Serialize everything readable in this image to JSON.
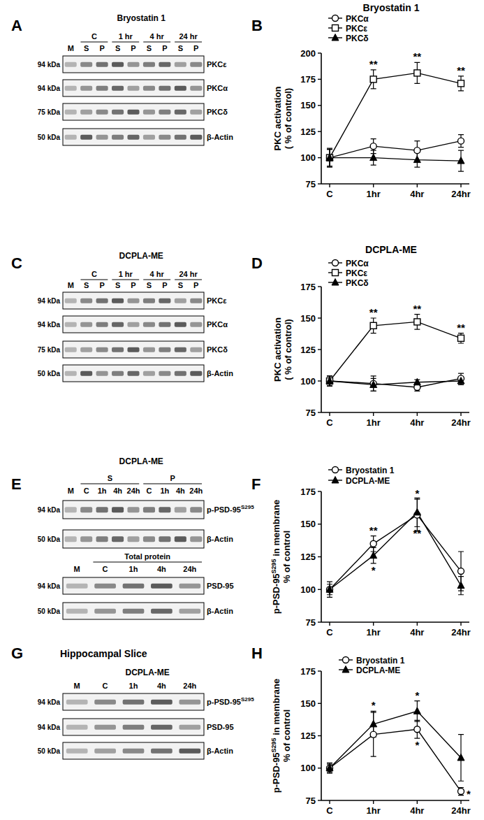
{
  "blots": [
    {
      "letter": "A",
      "title": "Bryostatin 1",
      "marker": "M",
      "groups": [
        {
          "label": "C",
          "lanes": [
            "S",
            "P"
          ]
        },
        {
          "label": "1 hr",
          "lanes": [
            "S",
            "P"
          ]
        },
        {
          "label": "4 hr",
          "lanes": [
            "S",
            "P"
          ]
        },
        {
          "label": "24 hr",
          "lanes": [
            "S",
            "P"
          ]
        }
      ],
      "rows": [
        {
          "kda": "94 kDa",
          "label": "PKCε"
        },
        {
          "kda": "94 kDa",
          "label": "PKCα"
        },
        {
          "kda": "75 kDa",
          "label": "PKCδ"
        },
        {
          "kda": "50 kDa",
          "label": "β-Actin"
        }
      ]
    },
    {
      "letter": "C",
      "title": "DCPLA-ME",
      "marker": "M",
      "groups": [
        {
          "label": "C",
          "lanes": [
            "S",
            "P"
          ]
        },
        {
          "label": "1 hr",
          "lanes": [
            "S",
            "P"
          ]
        },
        {
          "label": "4 hr",
          "lanes": [
            "S",
            "P"
          ]
        },
        {
          "label": "24 hr",
          "lanes": [
            "S",
            "P"
          ]
        }
      ],
      "rows": [
        {
          "kda": "94 kDa",
          "label": "PKCε"
        },
        {
          "kda": "94 kDa",
          "label": "PKCα"
        },
        {
          "kda": "75 kDa",
          "label": "PKCδ"
        },
        {
          "kda": "50 kDa",
          "label": "β-Actin"
        }
      ]
    },
    {
      "letter": "E",
      "title": "DCPLA-ME",
      "marker": "M",
      "groups": [
        {
          "label": "S",
          "lanes": [
            "C",
            "1h",
            "4h",
            "24h"
          ]
        },
        {
          "label": "P",
          "lanes": [
            "C",
            "1h",
            "4h",
            "24h"
          ]
        }
      ],
      "rows": [
        {
          "kda": "94 kDa",
          "label": "p-PSD-95",
          "sup": "S295"
        },
        {
          "kda": "50 kDa",
          "label": "β-Actin"
        }
      ]
    },
    {
      "marker": "M",
      "groups": [
        {
          "label": "Total protein",
          "lanes": [
            "C",
            "1h",
            "4h",
            "24h"
          ]
        }
      ],
      "rows": [
        {
          "kda": "94 kDa",
          "label": "PSD-95"
        },
        {
          "kda": "50 kDa",
          "label": "β-Actin"
        }
      ]
    },
    {
      "letter": "G",
      "heading": "Hippocampal Slice",
      "title": "DCPLA-ME",
      "marker": "M",
      "groups": [
        {
          "lanes": [
            "C",
            "1h",
            "4h",
            "24h"
          ]
        }
      ],
      "rows": [
        {
          "kda": "94 kDa",
          "label": "p-PSD-95",
          "sup": "S295"
        },
        {
          "kda": "94 kDa",
          "label": "PSD-95"
        },
        {
          "kda": "50 kDa",
          "label": "β-Actin"
        }
      ]
    }
  ],
  "chart_data": [
    {
      "type": "line",
      "letter": "B",
      "title": "Bryostatin 1",
      "y_label": [
        [
          {
            "text": "PKC activation"
          }
        ],
        [
          {
            "text": "( % of control)"
          }
        ]
      ],
      "categories": [
        "C",
        "1hr",
        "4hr",
        "24hr"
      ],
      "ylim": [
        75,
        200
      ],
      "yticks": [
        75,
        100,
        125,
        150,
        175,
        200
      ],
      "legend": "top-left",
      "series": [
        {
          "name": "PKCα",
          "color": "#000000",
          "marker": "circle-open",
          "values": [
            100,
            111,
            107,
            116
          ],
          "errors": [
            9,
            7,
            9,
            6
          ]
        },
        {
          "name": "PKCε",
          "color": "#000000",
          "marker": "square-open",
          "values": [
            100,
            175,
            181,
            171
          ],
          "errors": [
            8,
            9,
            10,
            7
          ]
        },
        {
          "name": "PKCδ",
          "color": "#000000",
          "marker": "triangle",
          "values": [
            100,
            100,
            98,
            97
          ],
          "errors": [
            8,
            7,
            7,
            10
          ]
        }
      ],
      "annotations": [
        {
          "text": "**",
          "series": 1,
          "category": 1,
          "side": "above"
        },
        {
          "text": "**",
          "series": 1,
          "category": 2,
          "side": "above"
        },
        {
          "text": "**",
          "series": 1,
          "category": 3,
          "side": "above"
        }
      ]
    },
    {
      "type": "line",
      "letter": "D",
      "title": "DCPLA-ME",
      "y_label": [
        [
          {
            "text": "PKC activation"
          }
        ],
        [
          {
            "text": "( % of control)"
          }
        ]
      ],
      "categories": [
        "C",
        "1hr",
        "4hr",
        "24hr"
      ],
      "ylim": [
        75,
        175
      ],
      "yticks": [
        75,
        100,
        125,
        150,
        175
      ],
      "legend": "top-left",
      "series": [
        {
          "name": "PKCα",
          "color": "#000000",
          "marker": "circle-open",
          "values": [
            100,
            98,
            95,
            102
          ],
          "errors": [
            4,
            6,
            3,
            4
          ]
        },
        {
          "name": "PKCε",
          "color": "#000000",
          "marker": "square-open",
          "values": [
            100,
            144,
            147,
            134
          ],
          "errors": [
            4,
            6,
            6,
            4
          ]
        },
        {
          "name": "PKCδ",
          "color": "#000000",
          "marker": "triangle",
          "values": [
            100,
            97,
            99,
            100
          ],
          "errors": [
            4,
            5,
            2,
            3
          ]
        }
      ],
      "annotations": [
        {
          "text": "**",
          "series": 1,
          "category": 1,
          "side": "above"
        },
        {
          "text": "**",
          "series": 1,
          "category": 2,
          "side": "above"
        },
        {
          "text": "**",
          "series": 1,
          "category": 3,
          "side": "above"
        }
      ]
    },
    {
      "type": "line",
      "letter": "F",
      "y_label": [
        [
          {
            "text": "p-PSD-95"
          },
          {
            "sup": "S295"
          },
          {
            "text": " in membrane"
          }
        ],
        [
          {
            "text": "% of control"
          }
        ]
      ],
      "categories": [
        "C",
        "1hr",
        "4hr",
        "24hr"
      ],
      "ylim": [
        75,
        175
      ],
      "yticks": [
        75,
        100,
        125,
        150,
        175
      ],
      "legend": "top-left",
      "series": [
        {
          "name": "Bryostatin 1",
          "color": "#000000",
          "marker": "circle-open",
          "values": [
            100,
            135,
            157,
            114
          ],
          "errors": [
            6,
            6,
            12,
            15
          ]
        },
        {
          "name": "DCPLA-ME",
          "color": "#000000",
          "marker": "triangle",
          "values": [
            100,
            126,
            159,
            103
          ],
          "errors": [
            4,
            6,
            11,
            7
          ]
        }
      ],
      "annotations": [
        {
          "text": "**",
          "series": 0,
          "category": 1,
          "side": "above"
        },
        {
          "text": "*",
          "series": 1,
          "category": 1,
          "side": "below"
        },
        {
          "text": "*",
          "series": 0,
          "category": 2,
          "side": "above"
        },
        {
          "text": "**",
          "series": 1,
          "category": 2,
          "side": "below"
        }
      ]
    },
    {
      "type": "line",
      "letter": "H",
      "y_label": [
        [
          {
            "text": "p-PSD-95"
          },
          {
            "sup": "S295"
          },
          {
            "text": " in membrane"
          }
        ],
        [
          {
            "text": "% of control"
          }
        ]
      ],
      "categories": [
        "C",
        "1hr",
        "4hr",
        "24hr"
      ],
      "ylim": [
        75,
        175
      ],
      "yticks": [
        75,
        100,
        125,
        150,
        175
      ],
      "legend": "top-left",
      "series": [
        {
          "name": "Bryostatin 1",
          "color": "#000000",
          "marker": "circle-open",
          "values": [
            100,
            126,
            130,
            82
          ],
          "errors": [
            4,
            17,
            7,
            3
          ]
        },
        {
          "name": "DCPLA-ME",
          "color": "#000000",
          "marker": "triangle",
          "values": [
            100,
            134,
            144,
            108
          ],
          "errors": [
            3,
            10,
            8,
            18
          ]
        }
      ],
      "annotations": [
        {
          "text": "*",
          "series": 1,
          "category": 1,
          "side": "above"
        },
        {
          "text": "*",
          "series": 1,
          "category": 2,
          "side": "above"
        },
        {
          "text": "*",
          "series": 0,
          "category": 2,
          "side": "below"
        },
        {
          "text": "*",
          "series": 0,
          "category": 3,
          "side": "right"
        }
      ]
    }
  ]
}
